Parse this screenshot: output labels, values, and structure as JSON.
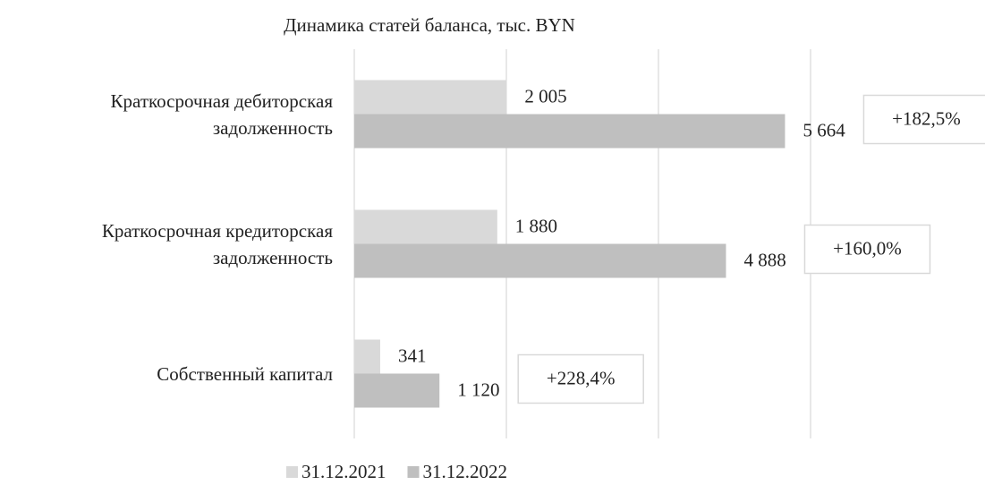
{
  "chart_data": {
    "type": "barh",
    "title": "Динамика статей баланса, тыс. BYN",
    "categories": [
      "Краткосрочная дебиторская задолженность",
      "Краткосрочная кредиторская задолженность",
      "Собственный капитал"
    ],
    "series": [
      {
        "name": "31.12.2021",
        "color": "#d9d9d9",
        "values": [
          2005,
          1880,
          341
        ],
        "value_labels": [
          "2 005",
          "1 880",
          "341"
        ]
      },
      {
        "name": "31.12.2022",
        "color": "#bfbfbf",
        "values": [
          5664,
          4888,
          1120
        ],
        "value_labels": [
          "5 664",
          "4 888",
          "1 120"
        ]
      }
    ],
    "annotations": [
      "+182,5%",
      "+160,0%",
      "+228,4%"
    ],
    "xlim": [
      0,
      6000
    ],
    "xticks": [
      0,
      2000,
      4000,
      6000
    ],
    "grid": true
  }
}
